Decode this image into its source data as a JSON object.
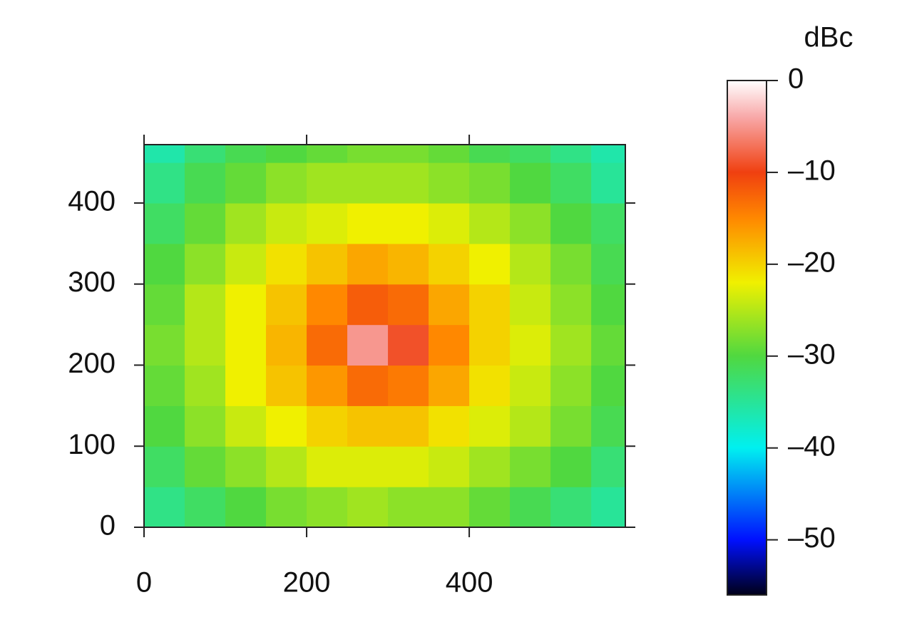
{
  "chart_data": {
    "type": "heatmap",
    "xbins": [
      0,
      50,
      100,
      150,
      200,
      250,
      300,
      350,
      400,
      450,
      500,
      550,
      592
    ],
    "ybins": [
      0,
      50,
      100,
      150,
      200,
      250,
      300,
      350,
      400,
      450,
      472
    ],
    "z": [
      [
        -34,
        -32,
        -30,
        -28,
        -27,
        -26,
        -27,
        -27,
        -29,
        -31,
        -33,
        -35
      ],
      [
        -32,
        -29,
        -27,
        -25,
        -23,
        -23,
        -23,
        -24,
        -26,
        -28,
        -30,
        -33
      ],
      [
        -30,
        -27,
        -24,
        -22,
        -20,
        -19,
        -19,
        -21,
        -23,
        -25,
        -28,
        -31
      ],
      [
        -29,
        -26,
        -22,
        -19,
        -16,
        -13,
        -14,
        -17,
        -21,
        -24,
        -27,
        -30
      ],
      [
        -28,
        -25,
        -22,
        -18,
        -13,
        -5,
        -9,
        -15,
        -20,
        -23,
        -26,
        -29
      ],
      [
        -29,
        -25,
        -22,
        -19,
        -15,
        -12,
        -13,
        -17,
        -20,
        -24,
        -27,
        -30
      ],
      [
        -30,
        -27,
        -24,
        -21,
        -19,
        -17,
        -18,
        -20,
        -22,
        -25,
        -28,
        -31
      ],
      [
        -32,
        -29,
        -26,
        -24,
        -23,
        -22,
        -22,
        -23,
        -25,
        -27,
        -30,
        -32
      ],
      [
        -34,
        -31,
        -29,
        -27,
        -26,
        -26,
        -26,
        -27,
        -28,
        -30,
        -32,
        -35
      ],
      [
        -36,
        -33,
        -31,
        -30,
        -29,
        -28,
        -28,
        -29,
        -31,
        -32,
        -34,
        -36
      ]
    ],
    "xlim": [
      0,
      592
    ],
    "ylim": [
      0,
      472
    ],
    "xticks": [
      0,
      200,
      400
    ],
    "yticks": [
      0,
      100,
      200,
      300,
      400
    ],
    "colorbar_title": "dBc",
    "zlim": [
      -56,
      0
    ],
    "zticks": [
      0,
      {
        "value": -10,
        "label": "–10"
      },
      {
        "value": -20,
        "label": "–20"
      },
      {
        "value": -30,
        "label": "–30"
      },
      {
        "value": -40,
        "label": "–40"
      },
      {
        "value": -50,
        "label": "–50"
      }
    ],
    "colorscale": [
      [
        -56,
        "#000018"
      ],
      [
        -50,
        "#0010ff"
      ],
      [
        -40,
        "#00f0f0"
      ],
      [
        -30,
        "#50d840"
      ],
      [
        -22,
        "#f0f000"
      ],
      [
        -15,
        "#ff8800"
      ],
      [
        -10,
        "#f04010"
      ],
      [
        -4,
        "#f8a8a8"
      ],
      [
        0,
        "#ffffff"
      ]
    ]
  }
}
